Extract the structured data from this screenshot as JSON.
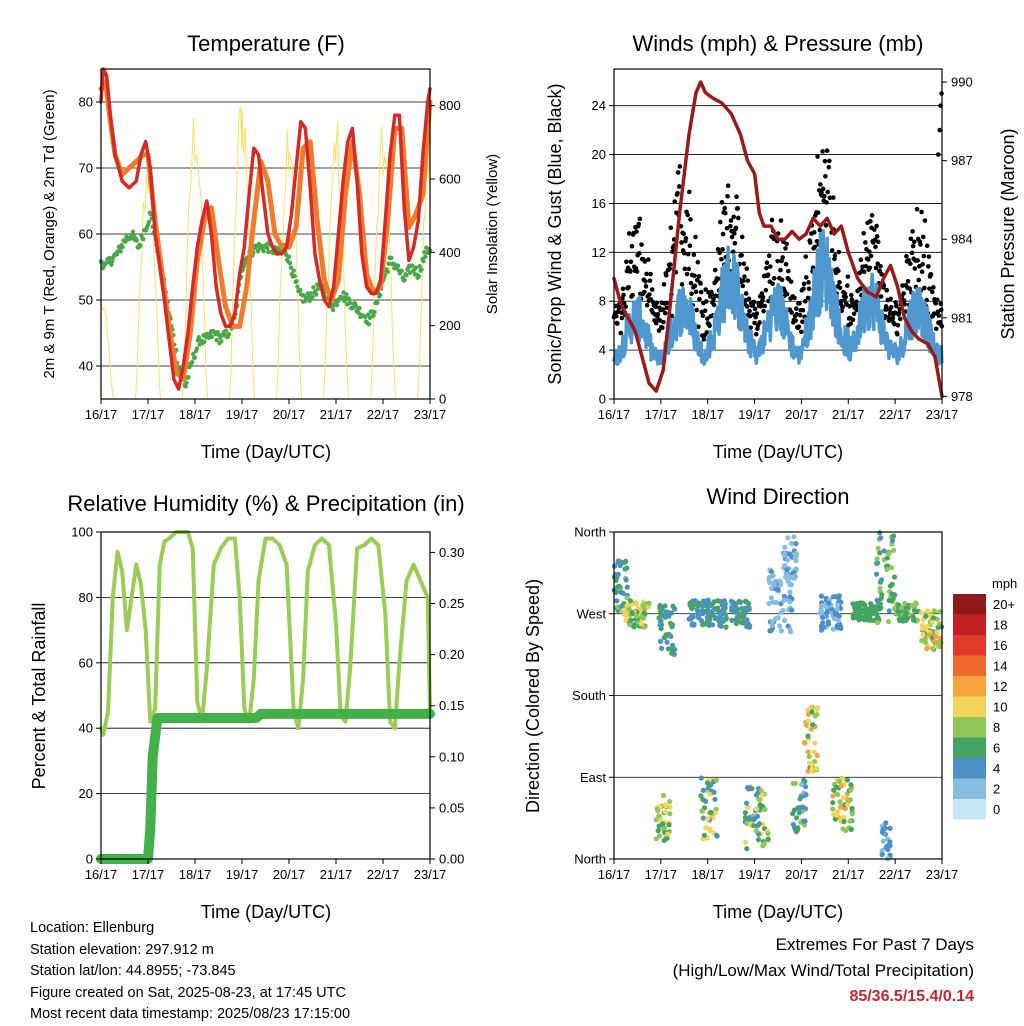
{
  "colors": {
    "temp2m": "#d62a24",
    "temp9m": "#f07b2a",
    "dew": "#4aa84a",
    "solar": "#f7e066",
    "wind": "#4f97cf",
    "gust": "#000000",
    "pressure": "#9b1b1b",
    "rh": "#9acd55",
    "precip": "#43b048"
  },
  "x_ticks": [
    "16/17",
    "17/17",
    "18/17",
    "19/17",
    "20/17",
    "21/17",
    "22/17",
    "23/17"
  ],
  "panels": {
    "temperature": {
      "title": "Temperature (F)",
      "xlabel": "Time (Day/UTC)",
      "ylabel_left": "2m & 9m T (Red, Orange) & 2m Td (Green)",
      "ylabel_right": "Solar Insolation (Yellow)"
    },
    "winds": {
      "title": "Winds (mph) & Pressure (mb)",
      "xlabel": "Time (Day/UTC)",
      "ylabel_left": "Sonic/Prop Wind & Gust (Blue, Black)",
      "ylabel_right": "Station Pressure (Maroon)"
    },
    "rh": {
      "title": "Relative Humidity (%) & Precipitation (in)",
      "xlabel": "Time (Day/UTC)",
      "ylabel_left": "Percent & Total Rainfall"
    },
    "wind_direction": {
      "title": "Wind Direction",
      "xlabel": "Time (Day/UTC)",
      "ylabel_left": "Direction (Colored By Speed)",
      "legend_unit": "mph"
    }
  },
  "info": {
    "location": "Location: Ellenburg",
    "elevation": "Station elevation: 297.912 m",
    "latlon": "Station lat/lon: 44.8955; -73.845",
    "created": "Figure created on Sat, 2025-08-23, at 17:45 UTC",
    "recent": "Most recent data timestamp: 2025/08/23 17:15:00"
  },
  "extremes": {
    "line1": "Extremes For Past 7 Days",
    "line2": "(High/Low/Max Wind/Total Precipitation)",
    "values": "85/36.5/15.4/0.14"
  },
  "chart_data": [
    {
      "type": "line",
      "title": "Temperature (F)",
      "xlabel": "Time (Day/UTC)",
      "ylabel": "2m & 9m T (Red, Orange) & 2m Td (Green)",
      "y2label": "Solar Insolation (Yellow)",
      "x_range": [
        0,
        7
      ],
      "ylim": [
        35,
        85
      ],
      "y_ticks": [
        40,
        50,
        60,
        70,
        80
      ],
      "y2lim": [
        0,
        900
      ],
      "y2_ticks": [
        0,
        200,
        400,
        600,
        800
      ],
      "series": [
        {
          "key": "temp2m",
          "axis": "left",
          "x": [
            0,
            0.05,
            0.12,
            0.2,
            0.3,
            0.45,
            0.6,
            0.75,
            0.85,
            0.95,
            1.05,
            1.15,
            1.25,
            1.35,
            1.45,
            1.55,
            1.65,
            1.75,
            1.85,
            1.95,
            2.05,
            2.15,
            2.25,
            2.35,
            2.45,
            2.55,
            2.65,
            2.75,
            2.85,
            2.95,
            3.05,
            3.15,
            3.25,
            3.35,
            3.45,
            3.55,
            3.65,
            3.75,
            3.85,
            3.95,
            4.05,
            4.15,
            4.25,
            4.35,
            4.45,
            4.55,
            4.65,
            4.75,
            4.85,
            4.95,
            5.05,
            5.15,
            5.25,
            5.35,
            5.45,
            5.55,
            5.65,
            5.75,
            5.85,
            5.95,
            6.05,
            6.15,
            6.25,
            6.35,
            6.45,
            6.55,
            6.65,
            6.75,
            6.85,
            6.95,
            7.0
          ],
          "y": [
            80,
            85,
            84,
            78,
            72,
            68,
            67,
            68,
            72,
            74,
            70,
            60,
            55,
            50,
            44,
            38,
            36.5,
            40,
            45,
            52,
            58,
            62,
            65,
            60,
            52,
            48,
            46,
            46,
            48,
            54,
            58,
            66,
            73,
            72,
            66,
            60,
            58,
            57,
            57,
            58,
            63,
            70,
            77,
            76,
            67,
            57,
            53,
            50,
            49,
            52,
            60,
            68,
            74,
            76,
            68,
            57,
            52,
            51,
            51,
            53,
            62,
            72,
            78,
            78,
            64,
            56,
            58,
            62,
            72,
            80,
            82
          ]
        },
        {
          "key": "temp9m",
          "axis": "left",
          "x": [
            0,
            0.1,
            0.2,
            0.3,
            0.45,
            0.6,
            0.75,
            0.9,
            1.0,
            1.15,
            1.3,
            1.45,
            1.6,
            1.75,
            1.9,
            2.05,
            2.2,
            2.35,
            2.5,
            2.65,
            2.8,
            2.95,
            3.1,
            3.25,
            3.4,
            3.55,
            3.7,
            3.85,
            4.0,
            4.15,
            4.3,
            4.45,
            4.6,
            4.75,
            4.9,
            5.05,
            5.2,
            5.35,
            5.5,
            5.65,
            5.8,
            5.95,
            6.1,
            6.25,
            6.4,
            6.55,
            6.7,
            6.85,
            7.0
          ],
          "y": [
            82,
            83,
            77,
            72,
            69,
            70,
            71,
            72,
            72,
            62,
            54,
            46,
            39,
            38,
            45,
            56,
            62,
            64,
            56,
            49,
            46,
            46,
            52,
            62,
            71,
            68,
            60,
            58,
            58,
            61,
            73,
            74,
            62,
            53,
            50,
            53,
            66,
            74,
            66,
            54,
            51,
            52,
            62,
            76,
            76,
            61,
            63,
            66,
            80
          ]
        },
        {
          "key": "dew",
          "axis": "left",
          "x": [
            0,
            0.1,
            0.2,
            0.35,
            0.5,
            0.65,
            0.8,
            0.95,
            1.05,
            1.2,
            1.35,
            1.5,
            1.65,
            1.8,
            1.95,
            2.1,
            2.25,
            2.4,
            2.55,
            2.7,
            2.85,
            3.0,
            3.15,
            3.3,
            3.45,
            3.6,
            3.75,
            3.9,
            4.05,
            4.2,
            4.35,
            4.5,
            4.65,
            4.8,
            4.95,
            5.1,
            5.25,
            5.4,
            5.55,
            5.7,
            5.85,
            6.0,
            6.15,
            6.3,
            6.45,
            6.6,
            6.75,
            6.9,
            7.0
          ],
          "y": [
            56,
            55,
            56,
            57,
            59,
            60,
            58,
            61,
            63,
            58,
            52,
            46,
            40,
            37,
            41,
            44,
            44,
            45,
            44,
            45,
            47,
            55,
            57,
            58,
            58,
            58,
            57,
            58,
            55,
            51,
            50,
            51,
            52,
            51,
            49,
            51,
            50,
            49,
            48,
            47,
            49,
            53,
            56,
            55,
            53,
            55,
            54,
            57,
            58
          ]
        },
        {
          "key": "solar",
          "axis": "right",
          "daily_peaks": [
            300,
            700,
            820,
            880,
            820,
            780,
            760
          ],
          "night_level": 0
        }
      ]
    },
    {
      "type": "line",
      "title": "Winds (mph) & Pressure (mb)",
      "xlabel": "Time (Day/UTC)",
      "ylabel": "Sonic/Prop Wind & Gust (Blue, Black)",
      "y2label": "Station Pressure (Maroon)",
      "x_range": [
        0,
        7
      ],
      "ylim": [
        0,
        27
      ],
      "y_ticks": [
        0,
        4,
        8,
        12,
        16,
        20,
        24
      ],
      "y2lim": [
        977.9,
        990.5
      ],
      "y2_ticks": [
        978,
        981,
        984,
        987,
        990
      ],
      "series": [
        {
          "key": "pressure",
          "axis": "right",
          "x": [
            0,
            0.15,
            0.3,
            0.45,
            0.6,
            0.75,
            0.9,
            1.05,
            1.2,
            1.4,
            1.6,
            1.75,
            1.85,
            1.95,
            2.1,
            2.3,
            2.5,
            2.7,
            2.85,
            3.0,
            3.1,
            3.2,
            3.35,
            3.5,
            3.65,
            3.8,
            3.95,
            4.1,
            4.25,
            4.4,
            4.55,
            4.7,
            4.85,
            5.0,
            5.2,
            5.4,
            5.6,
            5.75,
            5.9,
            6.05,
            6.2,
            6.35,
            6.5,
            6.7,
            6.85,
            7.0
          ],
          "y": [
            982.5,
            981.5,
            981,
            980.5,
            979.5,
            978.5,
            978.2,
            979,
            981.5,
            985,
            988,
            989.6,
            990,
            989.6,
            989.4,
            989.2,
            988.8,
            988,
            987,
            986.5,
            985,
            984.5,
            984.5,
            984,
            984,
            984.3,
            984,
            984.2,
            984.8,
            984.5,
            984.8,
            984.2,
            984.5,
            983.5,
            982.5,
            982,
            981.8,
            982.5,
            983,
            982.2,
            981,
            980.5,
            980.2,
            980,
            979.5,
            978
          ]
        },
        {
          "key": "wind",
          "axis": "left",
          "daily_peaks": [
            8,
            9,
            12,
            9,
            13,
            10,
            9
          ],
          "minimum": 1
        },
        {
          "key": "gust",
          "axis": "left",
          "daily_peaks": [
            14,
            19,
            17,
            14,
            21,
            14,
            15
          ],
          "final_peak": 25
        }
      ]
    },
    {
      "type": "line",
      "title": "Relative Humidity (%) & Precipitation (in)",
      "xlabel": "Time (Day/UTC)",
      "ylabel": "Percent & Total Rainfall",
      "x_range": [
        0,
        7
      ],
      "ylim": [
        0,
        100
      ],
      "y_ticks": [
        0,
        20,
        40,
        60,
        80,
        100
      ],
      "y2lim": [
        0,
        0.32
      ],
      "y2_ticks": [
        "0.00",
        "0.05",
        "0.10",
        "0.15",
        "0.20",
        "0.25",
        "0.30"
      ],
      "series": [
        {
          "key": "rh",
          "axis": "left",
          "x": [
            0,
            0.05,
            0.15,
            0.25,
            0.35,
            0.45,
            0.55,
            0.65,
            0.75,
            0.85,
            0.95,
            1.05,
            1.15,
            1.25,
            1.35,
            1.45,
            1.6,
            1.75,
            1.85,
            1.95,
            2.05,
            2.15,
            2.25,
            2.4,
            2.55,
            2.7,
            2.85,
            2.95,
            3.05,
            3.15,
            3.25,
            3.35,
            3.5,
            3.65,
            3.8,
            3.95,
            4.1,
            4.2,
            4.3,
            4.4,
            4.55,
            4.7,
            4.85,
            5.0,
            5.1,
            5.2,
            5.3,
            5.45,
            5.6,
            5.75,
            5.9,
            6.05,
            6.15,
            6.25,
            6.35,
            6.5,
            6.65,
            6.8,
            6.95,
            7.0
          ],
          "y": [
            40,
            38,
            45,
            80,
            94,
            88,
            70,
            80,
            90,
            84,
            70,
            42,
            46,
            90,
            97,
            98,
            100,
            100,
            100,
            95,
            48,
            42,
            58,
            90,
            95,
            98,
            98,
            80,
            46,
            42,
            55,
            85,
            98,
            98,
            96,
            90,
            45,
            40,
            55,
            88,
            96,
            98,
            96,
            72,
            44,
            42,
            58,
            95,
            96,
            98,
            96,
            75,
            42,
            40,
            60,
            85,
            90,
            85,
            80,
            46
          ]
        },
        {
          "key": "precip",
          "axis": "right",
          "x": [
            0,
            0.9,
            1.0,
            1.05,
            1.1,
            1.2,
            2.0,
            2.5,
            3.3,
            3.4,
            4.0,
            5.0,
            6.0,
            7.0
          ],
          "y": [
            0,
            0,
            0,
            0.03,
            0.1,
            0.138,
            0.138,
            0.138,
            0.138,
            0.142,
            0.142,
            0.142,
            0.142,
            0.142
          ]
        }
      ]
    },
    {
      "type": "scatter",
      "title": "Wind Direction",
      "xlabel": "Time (Day/UTC)",
      "ylabel": "Direction (Colored By Speed)",
      "x_range": [
        0,
        7
      ],
      "y_ticks": [
        "North",
        "East",
        "South",
        "West",
        "North"
      ],
      "clusters": [
        {
          "x": [
            0.0,
            0.3
          ],
          "y": [
            270,
            330
          ],
          "speed": [
            3,
            8
          ]
        },
        {
          "x": [
            0.2,
            0.75
          ],
          "y": [
            255,
            285
          ],
          "speed": [
            5,
            11
          ]
        },
        {
          "x": [
            0.95,
            1.3
          ],
          "y": [
            225,
            285
          ],
          "speed": [
            3,
            7
          ]
        },
        {
          "x": [
            0.9,
            1.2
          ],
          "y": [
            20,
            70
          ],
          "speed": [
            5,
            11
          ]
        },
        {
          "x": [
            1.85,
            2.2
          ],
          "y": [
            20,
            90
          ],
          "speed": [
            4,
            11
          ]
        },
        {
          "x": [
            1.6,
            2.4
          ],
          "y": [
            255,
            285
          ],
          "speed": [
            3,
            6
          ]
        },
        {
          "x": [
            2.5,
            2.9
          ],
          "y": [
            255,
            285
          ],
          "speed": [
            3,
            6
          ]
        },
        {
          "x": [
            2.8,
            3.3
          ],
          "y": [
            10,
            80
          ],
          "speed": [
            3,
            10
          ]
        },
        {
          "x": [
            3.3,
            3.8
          ],
          "y": [
            250,
            320
          ],
          "speed": [
            1,
            4
          ]
        },
        {
          "x": [
            3.6,
            3.9
          ],
          "y": [
            300,
            360
          ],
          "speed": [
            1,
            5
          ]
        },
        {
          "x": [
            3.8,
            4.1
          ],
          "y": [
            30,
            90
          ],
          "speed": [
            2,
            8
          ]
        },
        {
          "x": [
            4.05,
            4.35
          ],
          "y": [
            90,
            170
          ],
          "speed": [
            6,
            13
          ]
        },
        {
          "x": [
            4.4,
            4.85
          ],
          "y": [
            250,
            290
          ],
          "speed": [
            2,
            5
          ]
        },
        {
          "x": [
            4.65,
            5.1
          ],
          "y": [
            30,
            90
          ],
          "speed": [
            5,
            12
          ]
        },
        {
          "x": [
            5.1,
            5.7
          ],
          "y": [
            262,
            282
          ],
          "speed": [
            5,
            7
          ]
        },
        {
          "x": [
            5.6,
            6.0
          ],
          "y": [
            260,
            360
          ],
          "speed": [
            4,
            9
          ]
        },
        {
          "x": [
            5.7,
            5.9
          ],
          "y": [
            0,
            40
          ],
          "speed": [
            2,
            5
          ]
        },
        {
          "x": [
            6.0,
            6.5
          ],
          "y": [
            262,
            282
          ],
          "speed": [
            5,
            8
          ]
        },
        {
          "x": [
            6.55,
            7.0
          ],
          "y": [
            230,
            275
          ],
          "speed": [
            6,
            12
          ]
        }
      ],
      "legend": {
        "unit": "mph",
        "labels": [
          "20+",
          "18",
          "16",
          "14",
          "12",
          "10",
          "8",
          "6",
          "4",
          "2",
          "0"
        ],
        "colors": [
          "#8e1a1a",
          "#c22026",
          "#e03a2a",
          "#f06a30",
          "#f8a23c",
          "#f3d458",
          "#8fc75a",
          "#45a463",
          "#4d8fc7",
          "#87bde3",
          "#c7e6f6"
        ]
      }
    }
  ]
}
